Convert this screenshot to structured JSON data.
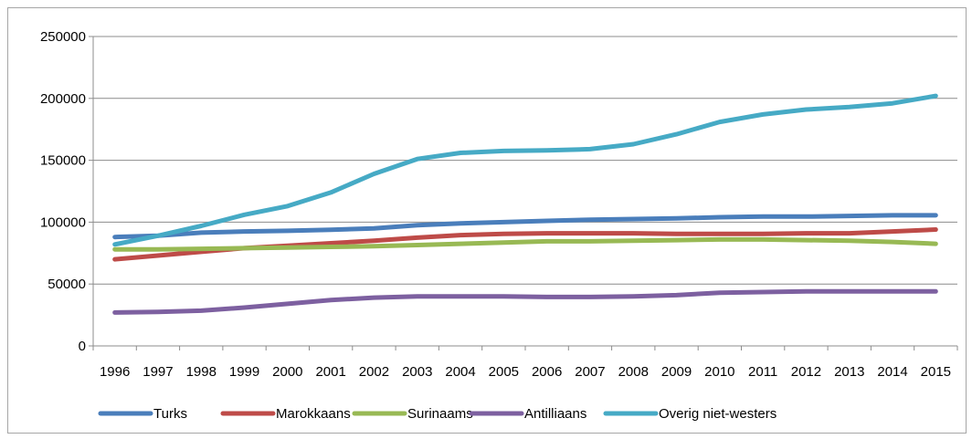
{
  "chart_data": {
    "type": "line",
    "title": "",
    "xlabel": "",
    "ylabel": "",
    "ylim": [
      0,
      250000
    ],
    "yticks": [
      0,
      50000,
      100000,
      150000,
      200000,
      250000
    ],
    "grid": true,
    "legend_position": "bottom",
    "categories": [
      "1996",
      "1997",
      "1998",
      "1999",
      "2000",
      "2001",
      "2002",
      "2003",
      "2004",
      "2005",
      "2006",
      "2007",
      "2008",
      "2009",
      "2010",
      "2011",
      "2012",
      "2013",
      "2014",
      "2015"
    ],
    "series": [
      {
        "name": "Turks",
        "color": "#4a7ebb",
        "values": [
          88000,
          89000,
          91500,
          92500,
          93000,
          93800,
          95000,
          97500,
          99000,
          100000,
          101000,
          102000,
          102500,
          103000,
          104000,
          104500,
          104500,
          105000,
          105500,
          105500
        ]
      },
      {
        "name": "Marokkaans",
        "color": "#be4b48",
        "values": [
          70000,
          73000,
          76000,
          79000,
          81000,
          83000,
          85000,
          87500,
          89500,
          90500,
          91000,
          91000,
          91000,
          90500,
          90500,
          90500,
          91000,
          91000,
          92500,
          94000
        ]
      },
      {
        "name": "Surinaams",
        "color": "#98b954",
        "values": [
          78000,
          78000,
          78500,
          79000,
          79500,
          80000,
          80500,
          81500,
          82500,
          83500,
          84500,
          84500,
          85000,
          85500,
          86000,
          86000,
          85500,
          85000,
          84000,
          82500
        ]
      },
      {
        "name": "Antilliaans",
        "color": "#7d60a0",
        "values": [
          27000,
          27500,
          28500,
          31000,
          34000,
          37000,
          39000,
          40000,
          40000,
          40000,
          39500,
          39500,
          40000,
          41000,
          43000,
          43500,
          44000,
          44000,
          44000,
          44000
        ]
      },
      {
        "name": "Overig niet-westers",
        "color": "#46aac5",
        "values": [
          82000,
          89000,
          97000,
          106000,
          113000,
          124000,
          139000,
          151000,
          156000,
          157500,
          158000,
          159000,
          163000,
          171000,
          181000,
          187000,
          191000,
          193000,
          196000,
          202000
        ]
      }
    ]
  }
}
